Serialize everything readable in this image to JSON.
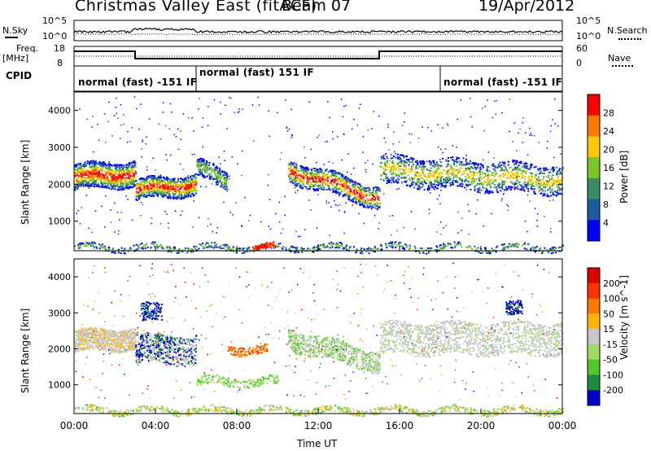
{
  "header": {
    "title": "Christmas Valley East (fitACF)",
    "beam": "Beam 07",
    "date": "19/Apr/2012"
  },
  "strips": {
    "nsky_label": "N.Sky",
    "nsearch_label": "N.Search",
    "nsky_ticks": [
      "10^5",
      "10^0"
    ],
    "nsearch_ticks": [
      "10^5",
      "10^0"
    ],
    "freq_label_1": "Freq.",
    "freq_label_2": "[MHz]",
    "freq_ticks": [
      "18",
      "8"
    ],
    "nave_label": "Nave",
    "nave_ticks": [
      "60",
      "0"
    ],
    "cpid_label": "CPID",
    "cpid_modes": [
      {
        "label": "normal (fast) -151 IF"
      },
      {
        "label": "normal (fast) 151 IF"
      },
      {
        "label": "normal (fast) -151 IF"
      }
    ]
  },
  "chart_data": [
    {
      "type": "heatmap",
      "name": "Power",
      "xlabel": "",
      "ylabel": "Slant Range [km]",
      "x_ticks": [
        "00:00",
        "04:00",
        "08:00",
        "12:00",
        "16:00",
        "20:00",
        "00:00"
      ],
      "y_ticks": [
        "1000",
        "2000",
        "3000",
        "4000"
      ],
      "ylim": [
        200,
        4500
      ],
      "colorbar_label": "Power [dB]",
      "colorbar_ticks": [
        "4",
        "8",
        "12",
        "16",
        "20",
        "24",
        "28"
      ],
      "colorbar_colors": [
        "#0000ff",
        "#1e5aa0",
        "#3c8c64",
        "#78c828",
        "#ffc800",
        "#ff7800",
        "#ff0000"
      ],
      "range_bands_km": [
        {
          "t0": 0.0,
          "t1": 3.0,
          "r0": 2000,
          "r1": 2500,
          "level": "high"
        },
        {
          "t0": 3.0,
          "t1": 6.0,
          "r0": 1700,
          "r1": 2200,
          "level": "high"
        },
        {
          "t0": 10.5,
          "t1": 15.0,
          "r0": 1600,
          "r1": 2200,
          "level": "high"
        },
        {
          "t0": 15.0,
          "t1": 24.0,
          "r0": 2000,
          "r1": 2700,
          "level": "medium"
        }
      ]
    },
    {
      "type": "heatmap",
      "name": "Velocity",
      "xlabel": "Time UT",
      "ylabel": "Slant Range [km]",
      "x_ticks": [
        "00:00",
        "04:00",
        "08:00",
        "12:00",
        "16:00",
        "20:00",
        "00:00"
      ],
      "y_ticks": [
        "1000",
        "2000",
        "3000",
        "4000"
      ],
      "ylim": [
        200,
        4500
      ],
      "colorbar_label": "Velocity [m s^-1]",
      "colorbar_ticks": [
        "200",
        "100",
        "50",
        "15",
        "-15",
        "-50",
        "-100",
        "-200"
      ],
      "colorbar_colors": [
        "#0000c8",
        "#1e8c3c",
        "#50c828",
        "#a0dc64",
        "#c8c8c8",
        "#ffb400",
        "#ff7800",
        "#ff3200",
        "#dc0000"
      ]
    }
  ],
  "x_axis": {
    "label": "Time UT",
    "ticks": [
      "00:00",
      "04:00",
      "08:00",
      "12:00",
      "16:00",
      "20:00",
      "00:00"
    ]
  }
}
